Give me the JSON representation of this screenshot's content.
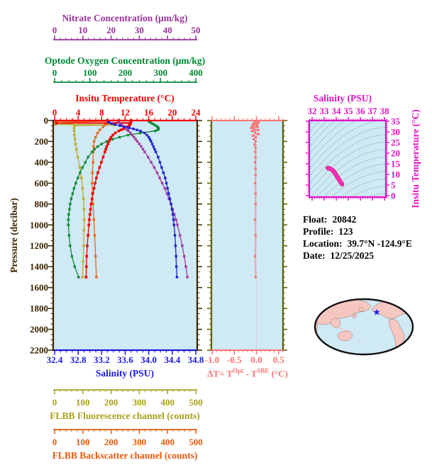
{
  "float_info": {
    "lines": [
      {
        "label": "Float:",
        "value": "20842"
      },
      {
        "label": "Profile:",
        "value": "123"
      },
      {
        "label": "Location:",
        "value": "39.7°N  -124.9°E"
      },
      {
        "label": "Date:",
        "value": "12/25/2025"
      }
    ]
  },
  "map": {
    "ocean_color": "#cfe9f5",
    "land_color": "#f5c7c0",
    "outline_color": "#111111",
    "marker_color": "#2020e8",
    "marker_glyph": "★"
  },
  "chart_data": [
    {
      "id": "profile-plot",
      "type": "line",
      "background": "#cfe9f5",
      "y_axis": {
        "label": "Pressure (decibar)",
        "range": [
          0,
          2200
        ],
        "tick_step": 200,
        "minor_step": 50,
        "ticks": [
          0,
          200,
          400,
          600,
          800,
          1000,
          1200,
          1400,
          1600,
          1800,
          2000,
          2200
        ],
        "color": "#3c2300"
      },
      "x_axes": {
        "temperature": {
          "label": "Insitu Temperature (°C)",
          "range": [
            0,
            24
          ],
          "tick_step": 4,
          "minor_step": 1,
          "ticks": [
            0,
            4,
            8,
            12,
            16,
            20,
            24
          ],
          "color": "#f30000"
        },
        "nitrate": {
          "label": "Nitrate Concentration (μm/kg)",
          "range": [
            0,
            50
          ],
          "tick_step": 10,
          "minor_step": 2,
          "ticks": [
            0,
            10,
            20,
            30,
            40,
            50
          ],
          "color": "#993399"
        },
        "oxygen": {
          "label": "Optode Oxygen Concentration (μm/kg)",
          "range": [
            0,
            400
          ],
          "tick_step": 100,
          "minor_step": 20,
          "ticks": [
            0,
            100,
            200,
            300,
            400
          ],
          "color": "#008833"
        },
        "salinity": {
          "label": "Salinity (PSU)",
          "range": [
            32.4,
            34.8
          ],
          "tick_step": 0.4,
          "minor_step": 0.1,
          "ticks": [
            32.4,
            32.8,
            33.2,
            33.6,
            34.0,
            34.4,
            34.8
          ],
          "color": "#1a1ad9",
          "decimals": 1
        },
        "fluorescence": {
          "label": "FLBB Fluorescence channel (counts)",
          "range": [
            0,
            500
          ],
          "tick_step": 100,
          "minor_step": 20,
          "ticks": [
            0,
            100,
            200,
            300,
            400,
            500
          ],
          "color": "#a8a11c"
        },
        "backscatter": {
          "label": "FLBB Backscatter channel (counts)",
          "range": [
            0,
            500
          ],
          "tick_step": 100,
          "minor_step": 20,
          "ticks": [
            0,
            100,
            200,
            300,
            400,
            500
          ],
          "color": "#e55b0f"
        }
      },
      "series": {
        "pressure": [
          0,
          10,
          20,
          30,
          40,
          50,
          60,
          70,
          80,
          90,
          100,
          120,
          140,
          160,
          180,
          200,
          225,
          250,
          275,
          300,
          350,
          400,
          450,
          500,
          550,
          600,
          650,
          700,
          750,
          800,
          850,
          900,
          950,
          1000,
          1100,
          1200,
          1300,
          1400,
          1500
        ],
        "salinity": [
          33.3,
          33.31,
          33.33,
          33.37,
          33.43,
          33.51,
          33.59,
          33.67,
          33.74,
          33.8,
          33.86,
          33.93,
          33.97,
          34.0,
          34.02,
          34.04,
          34.06,
          34.08,
          34.1,
          34.12,
          34.16,
          34.19,
          34.22,
          34.25,
          34.28,
          34.3,
          34.32,
          34.34,
          34.36,
          34.38,
          34.395,
          34.41,
          34.42,
          34.43,
          34.445,
          34.455,
          34.465,
          34.47,
          34.48
        ],
        "nitrate": [
          22.5,
          22.5,
          22.8,
          23.2,
          23.6,
          24.0,
          24.5,
          25.0,
          25.4,
          25.8,
          26.2,
          26.9,
          27.5,
          28.1,
          28.7,
          29.3,
          30.0,
          30.7,
          31.3,
          31.9,
          33.1,
          34.2,
          35.3,
          36.3,
          37.2,
          38.1,
          39.0,
          39.8,
          40.5,
          41.2,
          41.8,
          42.4,
          43.0,
          43.5,
          44.4,
          45.2,
          45.9,
          46.5,
          47.0
        ],
        "oxygen": [
          266,
          268,
          272,
          277,
          282,
          287,
          291,
          294,
          295,
          292,
          285,
          242,
          208,
          184,
          164,
          148,
          133,
          122,
          113,
          106,
          95,
          87,
          79,
          72,
          66,
          60,
          55,
          51,
          47,
          44,
          42,
          40,
          39,
          39,
          41,
          44,
          49,
          57,
          68
        ],
        "temperature": {
          "pressure": [
            0,
            10,
            20,
            25,
            27,
            30,
            40,
            50,
            60,
            70,
            80,
            90,
            100,
            120,
            140,
            160,
            180,
            200,
            225,
            250,
            275,
            300,
            350,
            400,
            450,
            500,
            550,
            600,
            650,
            700,
            750,
            800,
            850,
            900,
            950,
            1000,
            1100,
            1200,
            1300,
            1400,
            1500
          ],
          "values": [
            13.0,
            13.0,
            12.95,
            0.3,
            12.9,
            12.9,
            12.8,
            12.65,
            12.4,
            12.1,
            11.7,
            11.3,
            10.9,
            10.3,
            9.9,
            9.6,
            9.4,
            9.25,
            9.05,
            8.85,
            8.7,
            8.55,
            8.25,
            7.95,
            7.65,
            7.35,
            7.1,
            6.9,
            6.7,
            6.5,
            6.35,
            6.2,
            6.1,
            6.0,
            5.9,
            5.82,
            5.68,
            5.55,
            5.45,
            5.4,
            5.35
          ]
        },
        "fluorescence": {
          "pressure": [
            0,
            10,
            20,
            30,
            38,
            42,
            50,
            70,
            100,
            140,
            180,
            225,
            275,
            350,
            450,
            550,
            650,
            750,
            850,
            950,
            1050,
            1200,
            1350,
            1500
          ],
          "values": [
            64,
            64,
            63,
            62,
            3,
            209,
            70,
            69,
            69,
            70,
            72,
            74,
            77,
            82,
            89,
            95,
            99,
            102,
            104,
            105,
            104,
            103,
            101,
            99
          ]
        },
        "backscatter": {
          "pressure": [
            0,
            8,
            13,
            16,
            25,
            40,
            60,
            90,
            120,
            160,
            200,
            250,
            300,
            400,
            500,
            600,
            700,
            800,
            950,
            1100,
            1300,
            1500
          ],
          "values": [
            185,
            188,
            3,
            75,
            190,
            180,
            172,
            160,
            152,
            145,
            140,
            138,
            137,
            136,
            134,
            133,
            134,
            136,
            139,
            142,
            145,
            148
          ]
        }
      }
    },
    {
      "id": "delta-t-plot",
      "type": "scatter",
      "background": "#cfe9f5",
      "frame_color": "#5c5c00",
      "x_axis": {
        "label_parts": [
          "ΔT= T",
          "Opt",
          " - T",
          "SBE",
          " (°C)"
        ],
        "range": [
          -1.0,
          0.5
        ],
        "tick_step": 0.5,
        "minor_step": 0.1,
        "ticks": [
          -1.0,
          -0.5,
          0.0,
          0.5
        ],
        "color": "#ff7373",
        "decimals": 1
      },
      "series": {
        "pressure": [
          0,
          10,
          20,
          30,
          40,
          50,
          60,
          70,
          80,
          90,
          100,
          115,
          130,
          145,
          160,
          180,
          200,
          230,
          260,
          300,
          350,
          400,
          460,
          520,
          600,
          700,
          800,
          950,
          1100,
          1300,
          1500
        ],
        "values": [
          0.02,
          -0.04,
          0.05,
          -0.07,
          0.01,
          -0.09,
          0.03,
          -0.12,
          -0.05,
          0.04,
          -0.1,
          -0.03,
          0.05,
          -0.08,
          -0.01,
          -0.06,
          -0.02,
          -0.04,
          -0.02,
          -0.03,
          -0.02,
          -0.03,
          -0.02,
          -0.02,
          -0.03,
          -0.02,
          -0.02,
          -0.03,
          -0.02,
          -0.03,
          -0.02
        ]
      }
    },
    {
      "id": "ts-diagram",
      "type": "line",
      "background": "#cfe9f5",
      "contour_color": "#90a8aa",
      "curve_color": "#e8009c",
      "x_axis": {
        "label": "Salinity (PSU)",
        "range": [
          32,
          38
        ],
        "tick_step": 1,
        "minor_step": 0.2,
        "ticks": [
          32,
          33,
          34,
          35,
          36,
          37,
          38
        ],
        "color": "#e311c3"
      },
      "y_axis": {
        "label": "Insitu Temperature (°C)",
        "range": [
          0,
          35
        ],
        "tick_step": 5,
        "minor_step": 1,
        "ticks": [
          0,
          5,
          10,
          15,
          20,
          25,
          30,
          35
        ],
        "color": "#e311c3"
      },
      "note": "curve uses temperature & salinity series of profile-plot"
    }
  ]
}
